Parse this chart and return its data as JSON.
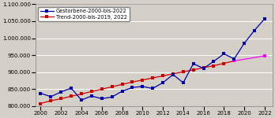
{
  "background_color": "#d4d0c8",
  "plot_bg_color": "#d4d0c8",
  "years": [
    2000,
    2001,
    2002,
    2003,
    2004,
    2005,
    2006,
    2007,
    2008,
    2009,
    2010,
    2011,
    2012,
    2013,
    2014,
    2015,
    2016,
    2017,
    2018,
    2019,
    2020,
    2021,
    2022
  ],
  "gestorbene": [
    838000,
    828000,
    842000,
    853000,
    818000,
    830000,
    822000,
    827000,
    844000,
    855000,
    858000,
    852000,
    869000,
    893000,
    869000,
    925000,
    911000,
    932000,
    954000,
    939000,
    985000,
    1023000,
    1057000
  ],
  "trend_main_years": [
    2000,
    2001,
    2002,
    2003,
    2004,
    2005,
    2006,
    2007,
    2008,
    2009,
    2010,
    2011,
    2012,
    2013,
    2014,
    2015,
    2016,
    2017,
    2018,
    2019
  ],
  "trend_main_values": [
    808000,
    816000,
    822000,
    829000,
    836000,
    843000,
    850000,
    857000,
    864000,
    871000,
    877000,
    883000,
    889000,
    895000,
    901000,
    907000,
    913000,
    919000,
    926000,
    933000
  ],
  "trend_hi_years": [
    2019,
    2022
  ],
  "trend_hi_values": [
    933000,
    948000
  ],
  "gestorbene_color": "#0000aa",
  "trend_color_main": "#cc0000",
  "trend_color_highlight": "#ff00ff",
  "ylim_min": 800000,
  "ylim_max": 1100000,
  "xlim_min": 1999.5,
  "xlim_max": 2022.8,
  "ytick_step": 50000,
  "legend_gestorbene": "Gestorbene-2000-bis-2022",
  "legend_trend": "Trend-2000-bis-2019, 2022",
  "marker_size": 2.2,
  "linewidth": 0.9
}
